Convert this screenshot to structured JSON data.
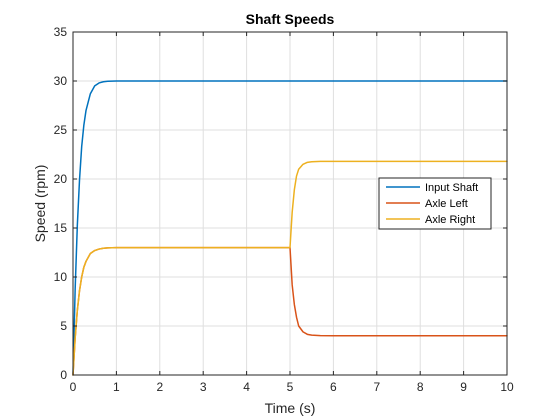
{
  "chart_data": {
    "type": "line",
    "title": "Shaft Speeds",
    "xlabel": "Time (s)",
    "ylabel": "Speed (rpm)",
    "xlim": [
      0,
      10
    ],
    "ylim": [
      0,
      35
    ],
    "xticks": [
      0,
      1,
      2,
      3,
      4,
      5,
      6,
      7,
      8,
      9,
      10
    ],
    "yticks": [
      0,
      5,
      10,
      15,
      20,
      25,
      30,
      35
    ],
    "grid": true,
    "legend_position": "right",
    "series": [
      {
        "name": "Input Shaft",
        "color": "#0072BD",
        "x": [
          0,
          0.05,
          0.1,
          0.15,
          0.2,
          0.25,
          0.3,
          0.4,
          0.5,
          0.6,
          0.7,
          0.8,
          0.9,
          1.0,
          1.2,
          1.5,
          2,
          3,
          4,
          5,
          6,
          7,
          8,
          9,
          10
        ],
        "y": [
          0,
          8.8,
          15.3,
          19.9,
          23.3,
          25.5,
          27.0,
          28.7,
          29.5,
          29.8,
          29.92,
          29.97,
          29.99,
          30.0,
          30.0,
          30.0,
          30.0,
          30.0,
          30.0,
          30.0,
          30.0,
          30.0,
          30.0,
          30.0,
          30.0
        ]
      },
      {
        "name": "Axle Left",
        "color": "#D95319",
        "x": [
          0,
          0.05,
          0.1,
          0.15,
          0.2,
          0.25,
          0.3,
          0.4,
          0.5,
          0.6,
          0.7,
          0.8,
          1.0,
          1.5,
          2,
          3,
          4,
          4.98,
          5.0,
          5.05,
          5.1,
          5.15,
          5.2,
          5.3,
          5.4,
          5.5,
          5.7,
          6,
          7,
          8,
          9,
          10
        ],
        "y": [
          0,
          3.8,
          6.6,
          8.6,
          10.0,
          11.0,
          11.6,
          12.4,
          12.7,
          12.85,
          12.93,
          12.97,
          13.0,
          13.0,
          13.0,
          13.0,
          13.0,
          13.0,
          13.0,
          9.2,
          7.2,
          5.9,
          5.0,
          4.4,
          4.15,
          4.07,
          4.02,
          4.0,
          4.0,
          4.0,
          4.0,
          4.0
        ]
      },
      {
        "name": "Axle Right",
        "color": "#EDB120",
        "x": [
          0,
          0.05,
          0.1,
          0.15,
          0.2,
          0.25,
          0.3,
          0.4,
          0.5,
          0.6,
          0.7,
          0.8,
          1.0,
          1.5,
          2,
          3,
          4,
          4.98,
          5.0,
          5.05,
          5.1,
          5.15,
          5.2,
          5.3,
          5.4,
          5.5,
          5.7,
          6,
          7,
          8,
          9,
          10
        ],
        "y": [
          0,
          3.8,
          6.6,
          8.6,
          10.0,
          11.0,
          11.6,
          12.4,
          12.7,
          12.85,
          12.93,
          12.97,
          13.0,
          13.0,
          13.0,
          13.0,
          13.0,
          13.0,
          13.0,
          16.6,
          18.9,
          20.3,
          21.0,
          21.5,
          21.7,
          21.76,
          21.8,
          21.8,
          21.8,
          21.8,
          21.8,
          21.8
        ]
      }
    ]
  }
}
